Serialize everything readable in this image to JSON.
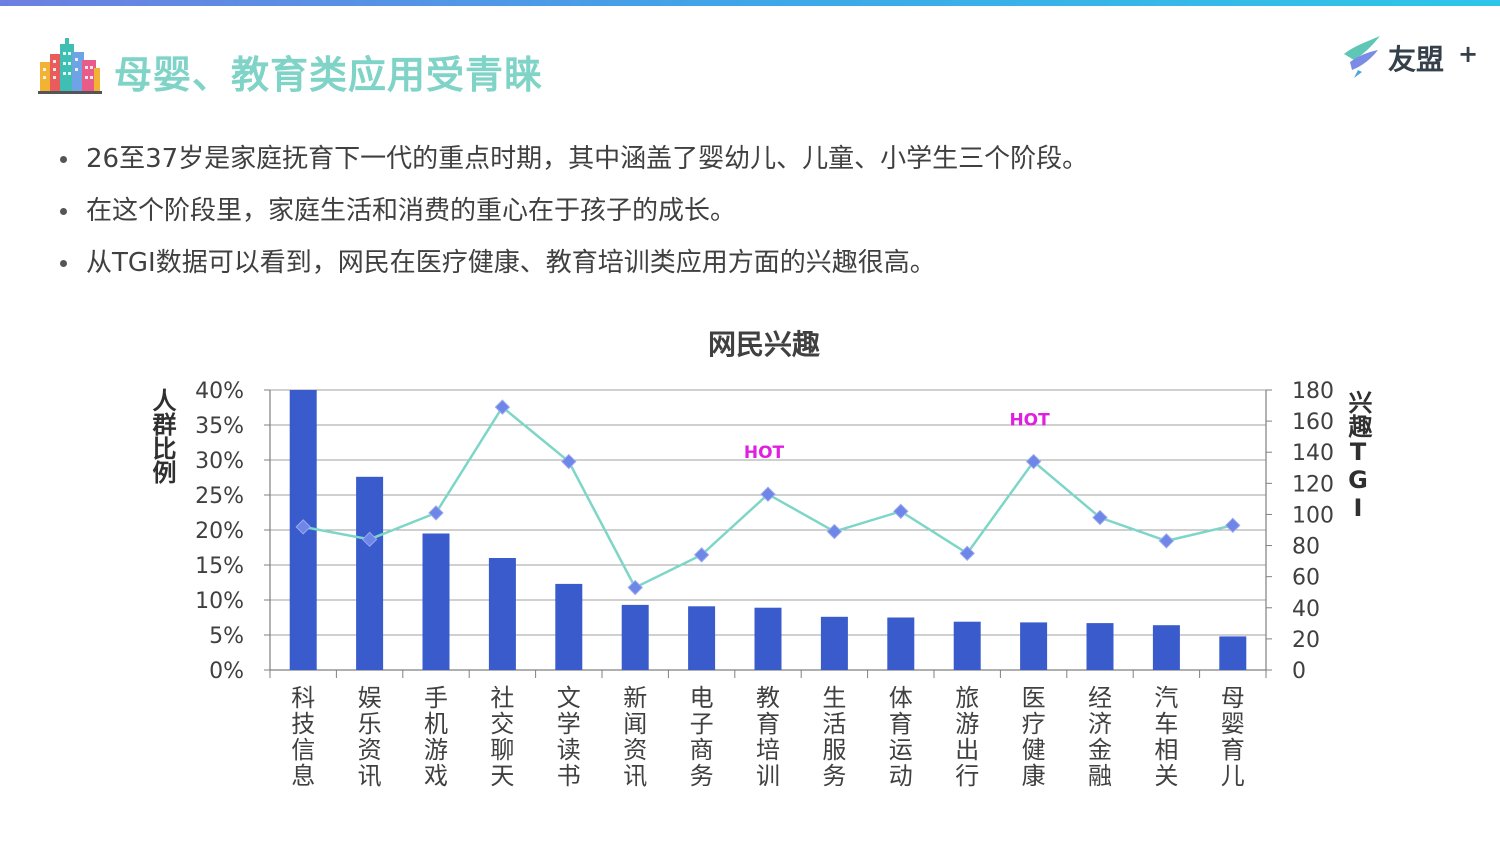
{
  "header": {
    "title": "母婴、教育类应用受青睐",
    "brand_name": "友盟",
    "brand_plus": "+"
  },
  "bullets": [
    "26至37岁是家庭抚育下一代的重点时期，其中涵盖了婴幼儿、儿童、小学生三个阶段。",
    "在这个阶段里，家庭生活和消费的重心在于孩子的成长。",
    "从TGI数据可以看到，网民在医疗健康、教育培训类应用方面的兴趣很高。"
  ],
  "colors": {
    "bar": "#3a5bcc",
    "line": "#7dd6c8",
    "marker": "#6e86e8",
    "hot": "#e020e0",
    "title": "#7fd3c7"
  },
  "chart_data": {
    "type": "bar",
    "title": "网民兴趣",
    "ylabel": "人群比例",
    "y2label": "兴趣TGI",
    "ylim": [
      0,
      40
    ],
    "y2lim": [
      0,
      180
    ],
    "yticks": [
      "0%",
      "5%",
      "10%",
      "15%",
      "20%",
      "25%",
      "30%",
      "35%",
      "40%"
    ],
    "y2ticks": [
      "0",
      "20",
      "40",
      "60",
      "80",
      "100",
      "120",
      "140",
      "160",
      "180"
    ],
    "grid": true,
    "categories": [
      "科技信息",
      "娱乐资讯",
      "手机游戏",
      "社交聊天",
      "文学读书",
      "新闻资讯",
      "电子商务",
      "教育培训",
      "生活服务",
      "体育运动",
      "旅游出行",
      "医疗健康",
      "经济金融",
      "汽车相关",
      "母婴育儿"
    ],
    "series": [
      {
        "type": "bar",
        "axis": "left",
        "values": [
          40.0,
          27.6,
          19.5,
          16.0,
          12.3,
          9.3,
          9.1,
          8.9,
          7.6,
          7.5,
          6.9,
          6.8,
          6.7,
          6.4,
          4.8
        ]
      },
      {
        "type": "line",
        "axis": "right",
        "values": [
          92,
          84,
          101,
          169,
          134,
          53,
          74,
          113,
          89,
          102,
          75,
          134,
          98,
          83,
          93
        ]
      }
    ],
    "annotations": [
      {
        "category": "教育培训",
        "text": "HOT"
      },
      {
        "category": "医疗健康",
        "text": "HOT"
      }
    ]
  }
}
